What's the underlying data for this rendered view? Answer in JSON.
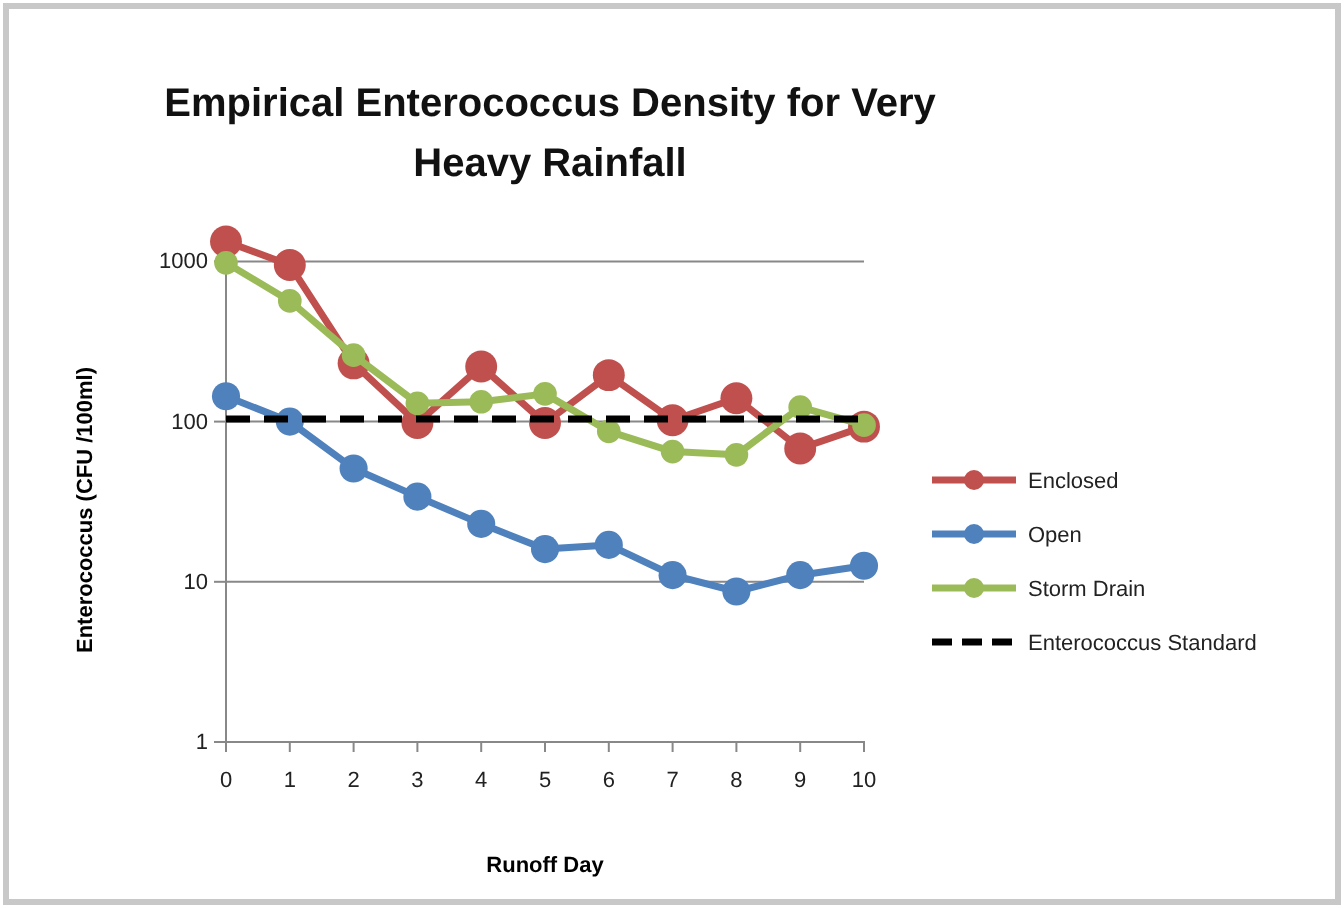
{
  "chart_data": {
    "type": "line",
    "title": "Empirical Enterococcus Density for Very Heavy Rainfall",
    "xlabel": "Runoff Day",
    "ylabel": "Enterococcus (CFU /100ml)",
    "x": [
      0,
      1,
      2,
      3,
      4,
      5,
      6,
      7,
      8,
      9,
      10
    ],
    "series": [
      {
        "name": "Enclosed",
        "color": "#c0504d",
        "values": [
          1330,
          950,
          231,
          98,
          221,
          98,
          195,
          102,
          140,
          68,
          93
        ]
      },
      {
        "name": "Open",
        "color": "#4f81bd",
        "values": [
          144,
          100,
          51,
          34,
          23,
          16,
          17,
          11,
          8.7,
          11,
          12.6
        ]
      },
      {
        "name": "Storm Drain",
        "color": "#9bbb59",
        "values": [
          980,
          567,
          260,
          130,
          133,
          149,
          87,
          65,
          62,
          123,
          95
        ]
      }
    ],
    "ref_lines": [
      {
        "axis": "y",
        "value": 104,
        "label": "Enterococcus Standard",
        "color": "#000000",
        "line_style": "dashed"
      }
    ],
    "log": true,
    "ylim": [
      1,
      1400
    ],
    "yticks": [
      1,
      10,
      100,
      1000
    ],
    "xlim": [
      0,
      10
    ],
    "xticks": [
      0,
      1,
      2,
      3,
      4,
      5,
      6,
      7,
      8,
      9,
      10
    ],
    "grid": "y",
    "legend": "right",
    "marker": "circle",
    "line_style": "solid"
  }
}
